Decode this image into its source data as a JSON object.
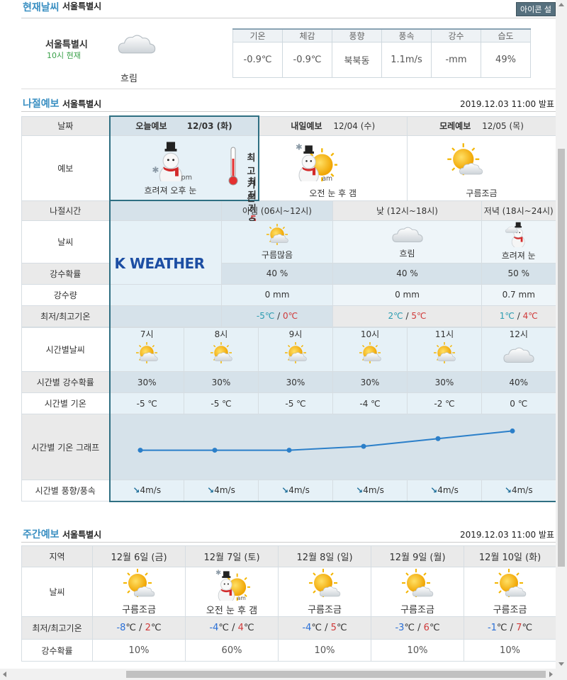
{
  "current": {
    "title": "현재날씨",
    "city_header": "서울특별시",
    "help_button": "아이콘 설명",
    "city": "서울특별시",
    "time": "10시 현재",
    "condition": "흐림",
    "icon": "cloud-icon",
    "headers": [
      "기온",
      "체감",
      "풍향",
      "풍속",
      "강수",
      "습도"
    ],
    "values": [
      "-0.9℃",
      "-0.9℃",
      "북북동",
      "1.1m/s",
      "-mm",
      "49%"
    ]
  },
  "forecast": {
    "title": "나절예보",
    "city": "서울특별시",
    "issued": "2019.12.03 11:00 발표",
    "labels": {
      "date": "날짜",
      "forecast": "예보",
      "period": "나절시간",
      "weather": "날씨",
      "pop": "강수확률",
      "precip": "강수량",
      "minmax": "최저/최고기온",
      "hourly_weather": "시간별날씨",
      "hourly_pop": "시간별 강수확률",
      "hourly_temp": "시간별 기온",
      "hourly_graph": "시간별 기온 그래프",
      "hourly_wind": "시간별 풍향/풍속"
    },
    "today": {
      "label": "오늘예보",
      "date": "12/03 (화)",
      "condition": "흐려져 오후 눈",
      "max_label": "최고기온 :",
      "max": "5",
      "min_label": "최저기온 :",
      "min": "-5"
    },
    "tomorrow": {
      "label": "내일예보",
      "date": "12/04 (수)",
      "condition": "오전 눈 후 갬"
    },
    "dayafter": {
      "label": "모레예보",
      "date": "12/05 (목)",
      "condition": "구름조금"
    },
    "brand": "K WEATHER",
    "periods": [
      {
        "name": "아침 (06시~12시)",
        "condition": "구름많음",
        "pop": "40 %",
        "precip": "0 mm",
        "min": "-5",
        "max": "0"
      },
      {
        "name": "낮 (12시~18시)",
        "condition": "흐림",
        "pop": "40 %",
        "precip": "0 mm",
        "min": "2",
        "max": "5"
      },
      {
        "name": "저녁 (18시~24시)",
        "condition": "흐려져 눈",
        "pop": "50 %",
        "precip": "0.7 mm",
        "min": "1",
        "max": "4"
      }
    ],
    "temp_unit": "℃",
    "sep": " / ",
    "hours": [
      "7시",
      "8시",
      "9시",
      "10시",
      "11시",
      "12시"
    ],
    "hourly_pop": [
      "30%",
      "30%",
      "30%",
      "30%",
      "30%",
      "40%"
    ],
    "hourly_temp": [
      "-5 ℃",
      "-5 ℃",
      "-5 ℃",
      "-4 ℃",
      "-2 ℃",
      "0 ℃"
    ],
    "hourly_wind": [
      "4m/s",
      "4m/s",
      "4m/s",
      "4m/s",
      "4m/s",
      "4m/s"
    ]
  },
  "chart_data": {
    "type": "line",
    "x": [
      "7시",
      "8시",
      "9시",
      "10시",
      "11시",
      "12시"
    ],
    "values": [
      -5,
      -5,
      -5,
      -4,
      -2,
      0
    ],
    "title": "",
    "xlabel": "",
    "ylabel": "",
    "color": "#2b7fc9"
  },
  "weekly": {
    "title": "주간예보",
    "city": "서울특별시",
    "issued": "2019.12.03 11:00 발표",
    "labels": {
      "region": "지역",
      "weather": "날씨",
      "minmax": "최저/최고기온",
      "pop": "강수확률"
    },
    "days": [
      {
        "date": "12월 6일 (금)",
        "condition": "구름조금",
        "min": "-8",
        "max": "2",
        "pop": "10%"
      },
      {
        "date": "12월 7일 (토)",
        "condition": "오전 눈 후 갬",
        "min": "-4",
        "max": "4",
        "pop": "60%"
      },
      {
        "date": "12월 8일 (일)",
        "condition": "구름조금",
        "min": "-4",
        "max": "5",
        "pop": "10%"
      },
      {
        "date": "12월 9일 (월)",
        "condition": "구름조금",
        "min": "-3",
        "max": "6",
        "pop": "10%"
      },
      {
        "date": "12월 10일 (화)",
        "condition": "구름조금",
        "min": "-1",
        "max": "7",
        "pop": "10%"
      }
    ],
    "unit": "℃",
    "slash": " / "
  },
  "colors": {
    "accent": "#3a8fc2",
    "border_highlight": "#2f6f82",
    "max_temp": "#d03a3a",
    "min_temp": "#2a6fd6"
  }
}
